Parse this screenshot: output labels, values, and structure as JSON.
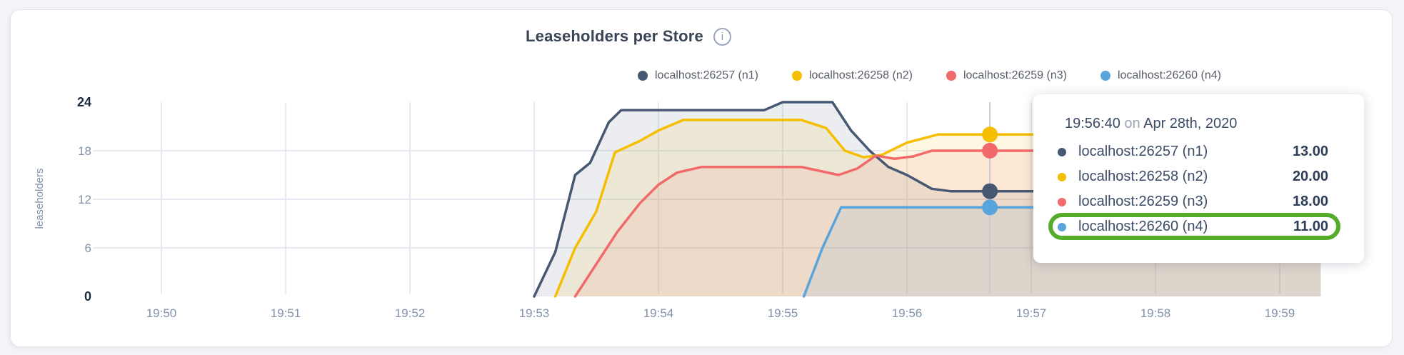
{
  "title": {
    "text": "Leaseholders per Store"
  },
  "icons": {
    "info": "i"
  },
  "legend": {
    "items": [
      {
        "label": "localhost:26257 (n1)",
        "color": "#475872"
      },
      {
        "label": "localhost:26258 (n2)",
        "color": "#F6BE00"
      },
      {
        "label": "localhost:26259 (n3)",
        "color": "#F26969"
      },
      {
        "label": "localhost:26260 (n4)",
        "color": "#59A4DB"
      }
    ]
  },
  "tooltip": {
    "time": "19:56:40",
    "preposition": "on",
    "date": "Apr 28th, 2020",
    "highlight_color": "#54ad2a",
    "rows": [
      {
        "label": "localhost:26257 (n1)",
        "value": "13.00",
        "color": "#475872",
        "highlighted": false
      },
      {
        "label": "localhost:26258 (n2)",
        "value": "20.00",
        "color": "#F6BE00",
        "highlighted": false
      },
      {
        "label": "localhost:26259 (n3)",
        "value": "18.00",
        "color": "#F26969",
        "highlighted": false
      },
      {
        "label": "localhost:26260 (n4)",
        "value": "11.00",
        "color": "#59A4DB",
        "highlighted": true
      }
    ]
  },
  "chart_data": {
    "type": "area",
    "title": "Leaseholders per Store",
    "xlabel": "",
    "ylabel": "leaseholders",
    "ylim": [
      0,
      24
    ],
    "grid": true,
    "legend_position": "top",
    "y_ticks": [
      {
        "value": 24,
        "bold": true
      },
      {
        "value": 18,
        "bold": false
      },
      {
        "value": 12,
        "bold": false
      },
      {
        "value": 6,
        "bold": false
      },
      {
        "value": 0,
        "bold": true
      }
    ],
    "x_ticks": [
      {
        "label": "19:50",
        "minute": 50
      },
      {
        "label": "19:51",
        "minute": 51
      },
      {
        "label": "19:52",
        "minute": 52
      },
      {
        "label": "19:53",
        "minute": 53
      },
      {
        "label": "19:54",
        "minute": 54
      },
      {
        "label": "19:55",
        "minute": 55
      },
      {
        "label": "19:56",
        "minute": 56
      },
      {
        "label": "19:57",
        "minute": 57
      },
      {
        "label": "19:58",
        "minute": 58
      },
      {
        "label": "19:59",
        "minute": 59
      }
    ],
    "hover": {
      "time": "19:56:40",
      "minute": 56.667,
      "values": [
        13,
        20,
        18,
        11
      ]
    },
    "series": [
      {
        "name": "localhost:26257 (n1)",
        "color": "#475872",
        "points": [
          [
            53.0,
            0
          ],
          [
            53.17,
            5.5
          ],
          [
            53.33,
            15
          ],
          [
            53.45,
            16.5
          ],
          [
            53.6,
            21.5
          ],
          [
            53.7,
            23
          ],
          [
            54.85,
            23
          ],
          [
            55.0,
            24
          ],
          [
            55.4,
            24
          ],
          [
            55.55,
            20.5
          ],
          [
            55.7,
            18
          ],
          [
            55.85,
            16
          ],
          [
            56.0,
            15
          ],
          [
            56.2,
            13.3
          ],
          [
            56.35,
            13
          ],
          [
            59.33,
            13
          ]
        ]
      },
      {
        "name": "localhost:26258 (n2)",
        "color": "#F6BE00",
        "points": [
          [
            53.17,
            0
          ],
          [
            53.33,
            6
          ],
          [
            53.5,
            10.5
          ],
          [
            53.65,
            17.8
          ],
          [
            53.85,
            19.2
          ],
          [
            54.0,
            20.5
          ],
          [
            54.2,
            21.8
          ],
          [
            55.15,
            21.8
          ],
          [
            55.35,
            20.8
          ],
          [
            55.5,
            18
          ],
          [
            55.65,
            17.2
          ],
          [
            55.8,
            17.5
          ],
          [
            56.0,
            19
          ],
          [
            56.25,
            20
          ],
          [
            59.33,
            20
          ]
        ]
      },
      {
        "name": "localhost:26259 (n3)",
        "color": "#F26969",
        "points": [
          [
            53.33,
            0
          ],
          [
            53.5,
            4
          ],
          [
            53.67,
            8
          ],
          [
            53.85,
            11.5
          ],
          [
            54.0,
            13.8
          ],
          [
            54.15,
            15.3
          ],
          [
            54.35,
            16
          ],
          [
            55.15,
            16
          ],
          [
            55.45,
            15
          ],
          [
            55.6,
            15.8
          ],
          [
            55.75,
            17.4
          ],
          [
            55.9,
            17
          ],
          [
            56.05,
            17.3
          ],
          [
            56.2,
            18
          ],
          [
            59.33,
            18
          ]
        ]
      },
      {
        "name": "localhost:26260 (n4)",
        "color": "#59A4DB",
        "points": [
          [
            55.17,
            0
          ],
          [
            55.32,
            6
          ],
          [
            55.47,
            11
          ],
          [
            59.33,
            11
          ]
        ]
      }
    ]
  }
}
